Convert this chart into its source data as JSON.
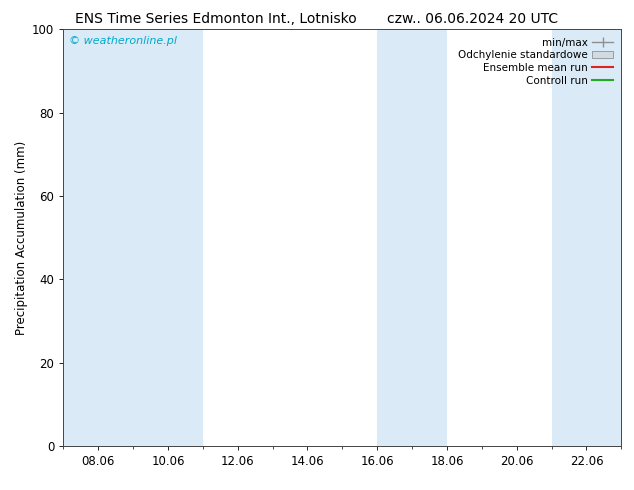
{
  "title_left": "ENS Time Series Edmonton Int., Lotnisko",
  "title_right": "czw.. 06.06.2024 20 UTC",
  "ylabel": "Precipitation Accumulation (mm)",
  "watermark": "© weatheronline.pl",
  "ylim": [
    0,
    100
  ],
  "yticks": [
    0,
    20,
    40,
    60,
    80,
    100
  ],
  "xtick_labels": [
    "08.06",
    "10.06",
    "12.06",
    "14.06",
    "16.06",
    "18.06",
    "20.06",
    "22.06"
  ],
  "xmin": 0.0,
  "xmax": 16.0,
  "blue_bands": [
    [
      0.0,
      2.0
    ],
    [
      2.0,
      4.0
    ],
    [
      9.0,
      11.0
    ],
    [
      14.0,
      16.0
    ]
  ],
  "band_color": "#daeaf6",
  "legend_labels": [
    "min/max",
    "Odchylenie standardowe",
    "Ensemble mean run",
    "Controll run"
  ],
  "legend_line_colors": [
    "#a0b8cc",
    "#c0d0dc",
    "#dd2222",
    "#22aa22"
  ],
  "background_color": "#ffffff",
  "plot_bg_color": "#ffffff",
  "watermark_color": "#00aacc",
  "title_fontsize": 10,
  "tick_fontsize": 8.5,
  "ylabel_fontsize": 8.5,
  "watermark_fontsize": 8
}
